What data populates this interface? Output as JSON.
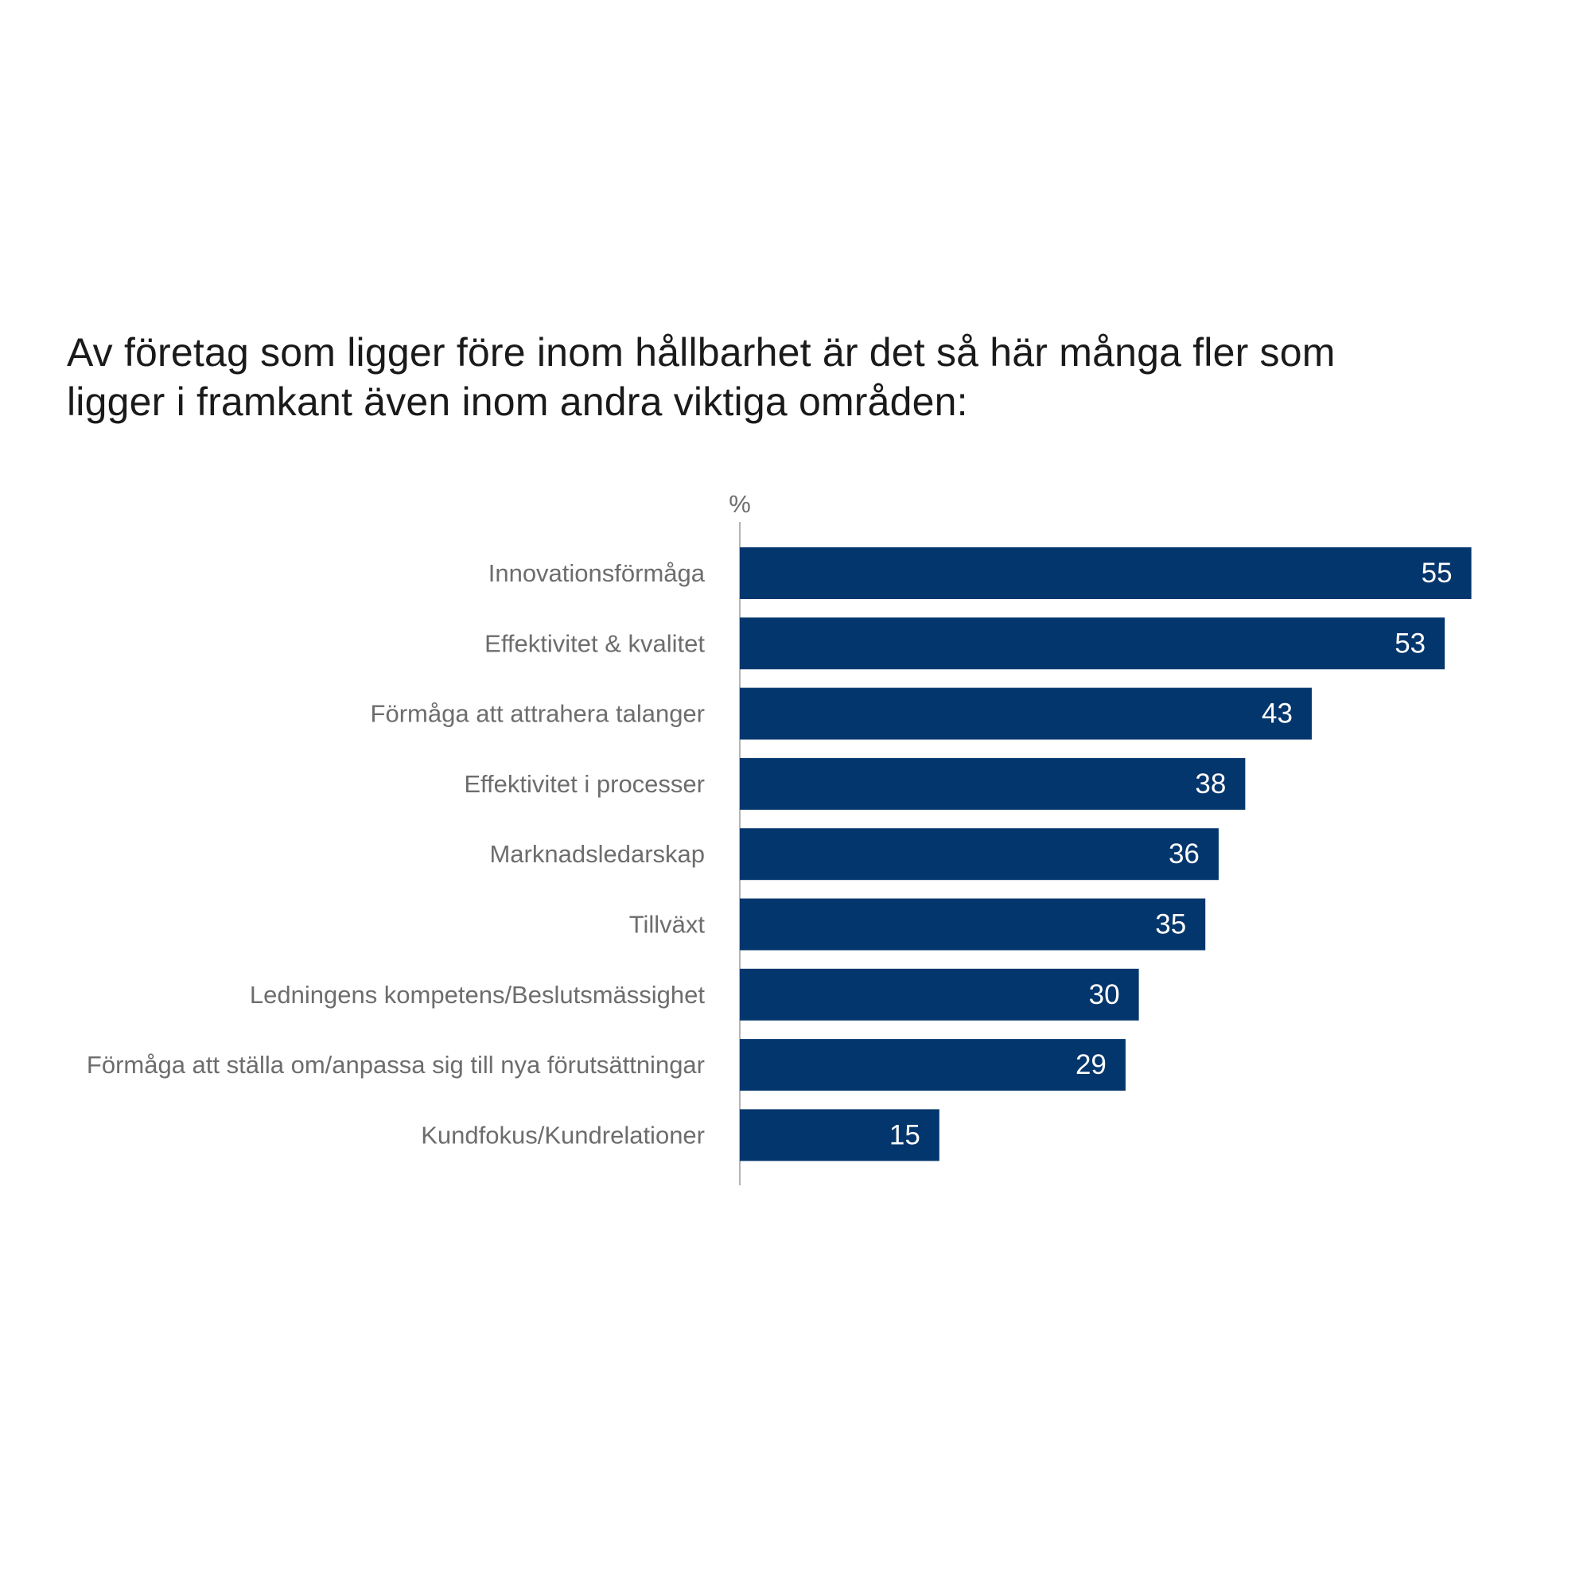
{
  "title": "Av företag som ligger före inom hållbarhet är det så här många fler som ligger i framkant även inom andra viktiga områden:",
  "chart_data": {
    "type": "bar",
    "orientation": "horizontal",
    "title": "Av företag som ligger före inom hållbarhet är det så här många fler som ligger i framkant även inom andra viktiga områden:",
    "unit": "%",
    "xlabel": "",
    "ylabel": "",
    "xlim": [
      0,
      60
    ],
    "grid": false,
    "legend": "none",
    "bar_color": "#03366c",
    "categories": [
      "Innovationsförmåga",
      "Effektivitet & kvalitet",
      "Förmåga att attrahera talanger",
      "Effektivitet i processer",
      "Marknadsledarskap",
      "Tillväxt",
      "Ledningens kompetens/Beslutsmässighet",
      "Förmåga att ställa om/anpassa sig till nya förutsättningar",
      "Kundfokus/Kundrelationer"
    ],
    "values": [
      55,
      53,
      43,
      38,
      36,
      35,
      30,
      29,
      15
    ],
    "data_labels": [
      "55",
      "53",
      "43",
      "38",
      "36",
      "35",
      "30",
      "29",
      "15"
    ]
  }
}
